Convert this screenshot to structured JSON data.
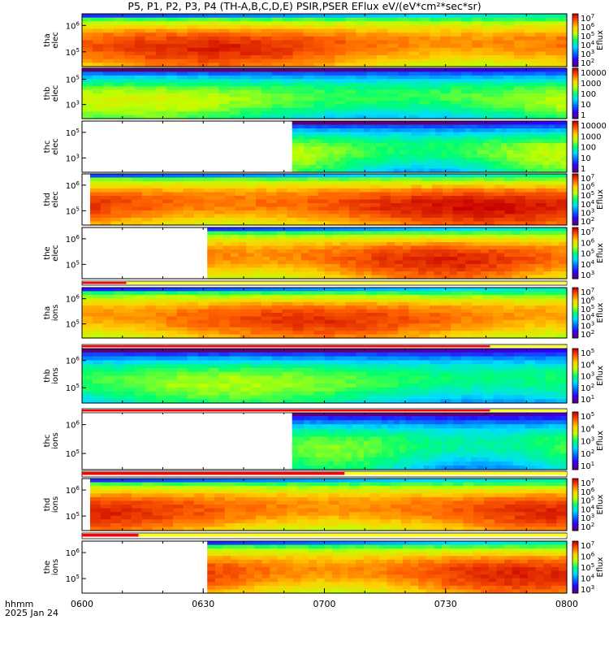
{
  "title": "P5, P1, P2, P3, P4 (TH-A,B,C,D,E) PSIR,PSER EFlux eV/(eV*cm²*sec*sr)",
  "x_axis": {
    "ticks": [
      "0600",
      "0630",
      "0700",
      "0730",
      "0800"
    ],
    "time_label": "hhmm",
    "date_label": "2025 Jan 24"
  },
  "chart_data": {
    "type": "heatmap",
    "x_range_hhmm": [
      "0600",
      "0800"
    ],
    "panels": [
      {
        "name": "tha elec",
        "probe": "tha",
        "species": "elec",
        "colorbar_label": "Eflux",
        "y_ticks": [
          {
            "label": "10",
            "exp": "6"
          },
          {
            "label": "10",
            "exp": "5"
          }
        ],
        "cb_ticks": [
          {
            "label": "10",
            "exp": "7"
          },
          {
            "label": "10",
            "exp": "6"
          },
          {
            "label": "10",
            "exp": "5"
          },
          {
            "label": "10",
            "exp": "4"
          },
          {
            "label": "10",
            "exp": "3"
          },
          {
            "label": "10",
            "exp": "2"
          }
        ],
        "data_start_hhmm": "0600",
        "data_end_hhmm": "0800",
        "bg_level": 0.72
      },
      {
        "name": "thb elec",
        "probe": "thb",
        "species": "elec",
        "colorbar_label": "",
        "y_ticks": [
          {
            "label": "10",
            "exp": "5"
          },
          {
            "label": "10",
            "exp": "3"
          }
        ],
        "cb_ticks": [
          {
            "label": "10000",
            "exp": ""
          },
          {
            "label": "1000",
            "exp": ""
          },
          {
            "label": "100",
            "exp": ""
          },
          {
            "label": "10",
            "exp": ""
          },
          {
            "label": "1",
            "exp": ""
          }
        ],
        "data_start_hhmm": "0600",
        "data_end_hhmm": "0800",
        "bg_level": 0.42
      },
      {
        "name": "thc elec",
        "probe": "thc",
        "species": "elec",
        "colorbar_label": "",
        "y_ticks": [
          {
            "label": "10",
            "exp": "5"
          },
          {
            "label": "10",
            "exp": "3"
          }
        ],
        "cb_ticks": [
          {
            "label": "10000",
            "exp": ""
          },
          {
            "label": "1000",
            "exp": ""
          },
          {
            "label": "100",
            "exp": ""
          },
          {
            "label": "10",
            "exp": ""
          },
          {
            "label": "1",
            "exp": ""
          }
        ],
        "data_start_hhmm": "0652",
        "data_end_hhmm": "0800",
        "bg_level": 0.4
      },
      {
        "name": "thd elec",
        "probe": "thd",
        "species": "elec",
        "colorbar_label": "Eflux",
        "y_ticks": [
          {
            "label": "10",
            "exp": "6"
          },
          {
            "label": "10",
            "exp": "5"
          }
        ],
        "cb_ticks": [
          {
            "label": "10",
            "exp": "7"
          },
          {
            "label": "10",
            "exp": "6"
          },
          {
            "label": "10",
            "exp": "5"
          },
          {
            "label": "10",
            "exp": "4"
          },
          {
            "label": "10",
            "exp": "3"
          },
          {
            "label": "10",
            "exp": "2"
          }
        ],
        "data_start_hhmm": "0602",
        "data_end_hhmm": "0800",
        "bg_level": 0.75
      },
      {
        "name": "the elec",
        "probe": "the",
        "species": "elec",
        "colorbar_label": "Eflux",
        "y_ticks": [
          {
            "label": "10",
            "exp": "6"
          },
          {
            "label": "10",
            "exp": "5"
          }
        ],
        "cb_ticks": [
          {
            "label": "10",
            "exp": "7"
          },
          {
            "label": "10",
            "exp": "6"
          },
          {
            "label": "10",
            "exp": "5"
          },
          {
            "label": "10",
            "exp": "4"
          },
          {
            "label": "10",
            "exp": "3"
          }
        ],
        "data_start_hhmm": "0631",
        "data_end_hhmm": "0800",
        "bg_level": 0.72
      },
      {
        "name": "tha ions",
        "probe": "tha",
        "species": "ions",
        "colorbar_label": "Eflux",
        "y_ticks": [
          {
            "label": "10",
            "exp": "6"
          },
          {
            "label": "10",
            "exp": "5"
          }
        ],
        "cb_ticks": [
          {
            "label": "10",
            "exp": "7"
          },
          {
            "label": "10",
            "exp": "6"
          },
          {
            "label": "10",
            "exp": "5"
          },
          {
            "label": "10",
            "exp": "4"
          },
          {
            "label": "10",
            "exp": "3"
          },
          {
            "label": "10",
            "exp": "2"
          }
        ],
        "data_start_hhmm": "0600",
        "data_end_hhmm": "0800",
        "bg_level": 0.7
      },
      {
        "name": "thb ions",
        "probe": "thb",
        "species": "ions",
        "colorbar_label": "Eflux",
        "y_ticks": [
          {
            "label": "10",
            "exp": "6"
          },
          {
            "label": "10",
            "exp": "5"
          }
        ],
        "cb_ticks": [
          {
            "label": "10",
            "exp": "5"
          },
          {
            "label": "10",
            "exp": "4"
          },
          {
            "label": "10",
            "exp": "3"
          },
          {
            "label": "10",
            "exp": "2"
          },
          {
            "label": "10",
            "exp": "1"
          }
        ],
        "data_start_hhmm": "0600",
        "data_end_hhmm": "0800",
        "bg_level": 0.38
      },
      {
        "name": "thc ions",
        "probe": "thc",
        "species": "ions",
        "colorbar_label": "Eflux",
        "y_ticks": [
          {
            "label": "10",
            "exp": "6"
          },
          {
            "label": "10",
            "exp": "5"
          }
        ],
        "cb_ticks": [
          {
            "label": "10",
            "exp": "5"
          },
          {
            "label": "10",
            "exp": "4"
          },
          {
            "label": "10",
            "exp": "3"
          },
          {
            "label": "10",
            "exp": "2"
          },
          {
            "label": "10",
            "exp": "1"
          }
        ],
        "data_start_hhmm": "0652",
        "data_end_hhmm": "0800",
        "bg_level": 0.35
      },
      {
        "name": "thd ions",
        "probe": "thd",
        "species": "ions",
        "colorbar_label": "Eflux",
        "y_ticks": [
          {
            "label": "10",
            "exp": "6"
          },
          {
            "label": "10",
            "exp": "5"
          }
        ],
        "cb_ticks": [
          {
            "label": "10",
            "exp": "7"
          },
          {
            "label": "10",
            "exp": "6"
          },
          {
            "label": "10",
            "exp": "5"
          },
          {
            "label": "10",
            "exp": "4"
          },
          {
            "label": "10",
            "exp": "3"
          },
          {
            "label": "10",
            "exp": "2"
          }
        ],
        "data_start_hhmm": "0602",
        "data_end_hhmm": "0800",
        "bg_level": 0.72
      },
      {
        "name": "the ions",
        "probe": "the",
        "species": "ions",
        "colorbar_label": "Eflux",
        "y_ticks": [
          {
            "label": "10",
            "exp": "6"
          },
          {
            "label": "10",
            "exp": "5"
          }
        ],
        "cb_ticks": [
          {
            "label": "10",
            "exp": "7"
          },
          {
            "label": "10",
            "exp": "6"
          },
          {
            "label": "10",
            "exp": "5"
          },
          {
            "label": "10",
            "exp": "4"
          },
          {
            "label": "10",
            "exp": "3"
          }
        ],
        "data_start_hhmm": "0631",
        "data_end_hhmm": "0800",
        "bg_level": 0.72
      }
    ],
    "region_bars": [
      {
        "after_panel": "the elec",
        "red_until_hhmm": "0611"
      },
      {
        "after_panel": "tha ions",
        "red_until_hhmm": "0741"
      },
      {
        "after_panel": "thb ions",
        "red_until_hhmm": "0741"
      },
      {
        "after_panel": "thc ions",
        "red_until_hhmm": "0705"
      },
      {
        "after_panel": "thd ions",
        "red_until_hhmm": "0614"
      }
    ]
  },
  "colors": {
    "region_bar_red": "#ff0000",
    "region_bar_yellow": "#ffff00",
    "colormap": [
      "#5a007a",
      "#3000ff",
      "#0070ff",
      "#00ddff",
      "#00ff70",
      "#bfff00",
      "#ffd000",
      "#ff6000",
      "#c80000"
    ]
  }
}
